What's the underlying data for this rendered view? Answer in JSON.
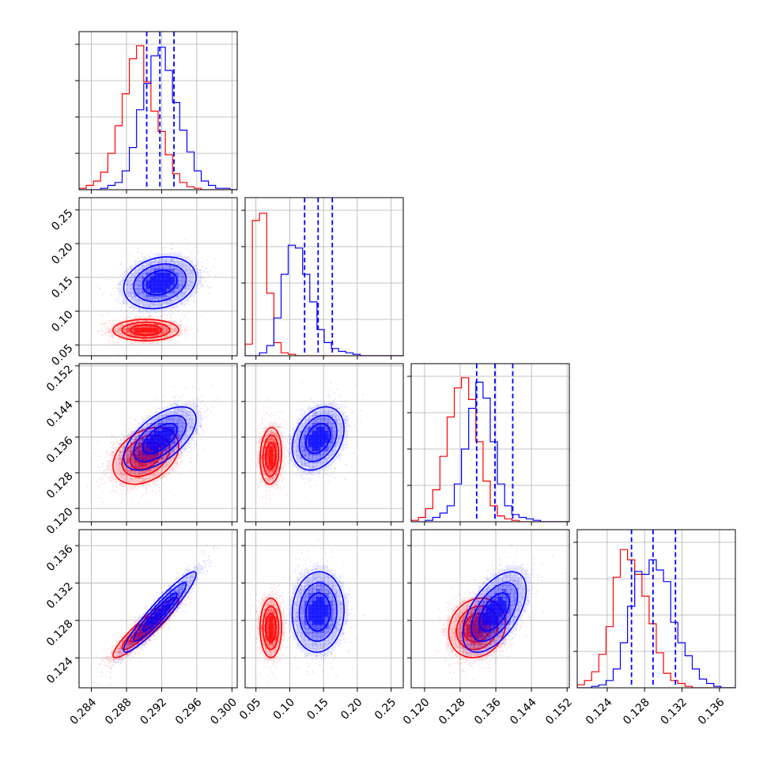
{
  "chart_data": {
    "type": "corner",
    "description_free": true,
    "colors": {
      "primary": "#0000ff",
      "secondary": "#ff0000",
      "grid": "#b0b0b0",
      "frame": "#000000"
    },
    "grid": true,
    "parameters": [
      {
        "id": "p1",
        "range": [
          0.2826,
          0.3006
        ],
        "ticks": [
          0.284,
          0.288,
          0.292,
          0.296,
          0.3
        ],
        "tick_labels": [
          "0.284",
          "0.288",
          "0.292",
          "0.296",
          "0.300"
        ],
        "quantiles": [
          0.2903,
          0.2918,
          0.2934
        ],
        "hist_primary": [
          0,
          0,
          0,
          0.01,
          0.03,
          0.05,
          0.13,
          0.29,
          0.55,
          0.73,
          0.92,
          0.98,
          0.82,
          0.6,
          0.41,
          0.26,
          0.13,
          0.06,
          0.03,
          0.01,
          0.01,
          0
        ],
        "hist_secondary": [
          0.01,
          0.03,
          0.06,
          0.12,
          0.25,
          0.44,
          0.66,
          0.9,
          0.99,
          0.74,
          0.54,
          0.4,
          0.24,
          0.11,
          0.05,
          0.02,
          0.01,
          0,
          0,
          0,
          0,
          0
        ]
      },
      {
        "id": "p2",
        "range": [
          0.034,
          0.268
        ],
        "ticks": [
          0.05,
          0.1,
          0.15,
          0.2,
          0.25
        ],
        "tick_labels": [
          "0.05",
          "0.10",
          "0.15",
          "0.20",
          "0.25"
        ],
        "quantiles": [
          0.122,
          0.142,
          0.163
        ],
        "hist_primary": [
          0,
          0,
          0.02,
          0.07,
          0.26,
          0.56,
          0.76,
          0.74,
          0.56,
          0.37,
          0.18,
          0.09,
          0.05,
          0.03,
          0.02,
          0.01,
          0,
          0,
          0,
          0,
          0,
          0
        ],
        "hist_secondary": [
          0.08,
          0.93,
          0.98,
          0.43,
          0.09,
          0.02,
          0.01,
          0,
          0,
          0,
          0,
          0,
          0,
          0,
          0,
          0,
          0,
          0,
          0,
          0,
          0,
          0
        ]
      },
      {
        "id": "p3",
        "range": [
          0.117,
          0.1525
        ],
        "ticks": [
          0.12,
          0.128,
          0.136,
          0.144,
          0.152
        ],
        "tick_labels": [
          "0.120",
          "0.128",
          "0.136",
          "0.144",
          "0.152"
        ],
        "quantiles": [
          0.1317,
          0.1358,
          0.1398
        ],
        "hist_primary": [
          0,
          0,
          0.01,
          0.03,
          0.06,
          0.11,
          0.26,
          0.5,
          0.78,
          0.96,
          0.85,
          0.55,
          0.26,
          0.11,
          0.05,
          0.03,
          0.02,
          0.01,
          0,
          0,
          0,
          0
        ],
        "hist_secondary": [
          0.01,
          0.03,
          0.09,
          0.22,
          0.45,
          0.72,
          0.92,
          0.99,
          0.84,
          0.55,
          0.28,
          0.11,
          0.04,
          0.02,
          0.01,
          0,
          0,
          0,
          0,
          0,
          0,
          0
        ]
      },
      {
        "id": "p4",
        "range": [
          0.1208,
          0.1377
        ],
        "ticks": [
          0.124,
          0.128,
          0.132,
          0.136
        ],
        "tick_labels": [
          "0.124",
          "0.128",
          "0.132",
          "0.136"
        ],
        "quantiles": [
          0.1266,
          0.1289,
          0.1313
        ],
        "hist_primary": [
          0,
          0,
          0.01,
          0.02,
          0.05,
          0.13,
          0.31,
          0.56,
          0.8,
          0.78,
          0.88,
          0.81,
          0.73,
          0.45,
          0.31,
          0.22,
          0.13,
          0.06,
          0.03,
          0.01,
          0,
          0
        ],
        "hist_secondary": [
          0.02,
          0.05,
          0.11,
          0.23,
          0.42,
          0.76,
          0.95,
          0.88,
          0.78,
          0.63,
          0.44,
          0.24,
          0.1,
          0.05,
          0.03,
          0.01,
          0,
          0,
          0,
          0,
          0,
          0
        ]
      }
    ],
    "samples": {
      "primary": {
        "mean": [
          0.2918,
          0.142,
          0.1357,
          0.1289
        ],
        "std": [
          0.0022,
          0.0205,
          0.0038,
          0.0023
        ],
        "corr": {
          "0-1": 0.2,
          "0-2": 0.6,
          "0-3": 0.94,
          "1-2": 0.3,
          "1-3": 0.05,
          "2-3": 0.55
        }
      },
      "secondary": {
        "mean": [
          0.2902,
          0.072,
          0.1318,
          0.1272
        ],
        "std": [
          0.002,
          0.0085,
          0.0034,
          0.0017
        ],
        "corr": {
          "0-1": 0.0,
          "0-2": 0.35,
          "0-3": 0.92,
          "1-2": 0.1,
          "1-3": 0.0,
          "2-3": 0.15
        }
      }
    }
  }
}
